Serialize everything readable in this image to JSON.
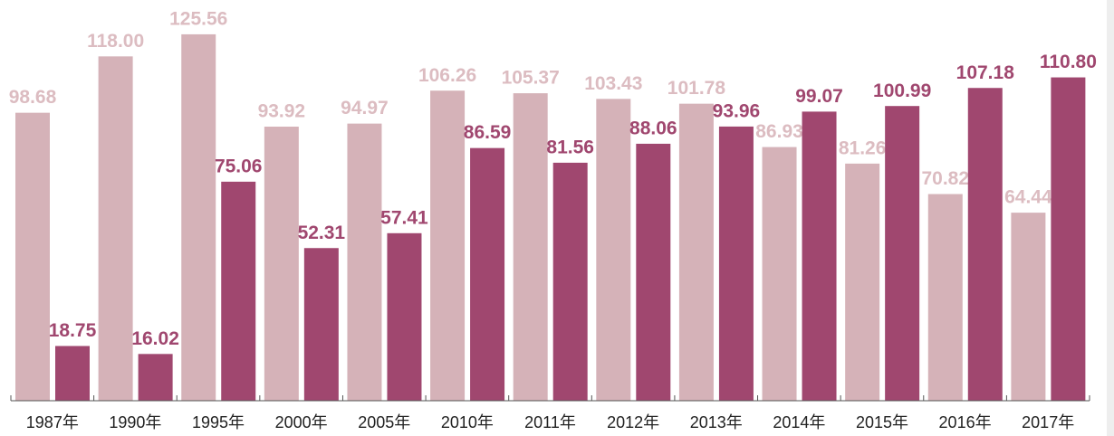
{
  "chart_data": {
    "type": "bar",
    "categories": [
      "1987年",
      "1990年",
      "1995年",
      "2000年",
      "2005年",
      "2010年",
      "2011年",
      "2012年",
      "2013年",
      "2014年",
      "2015年",
      "2016年",
      "2017年"
    ],
    "series": [
      {
        "color": "#d5b2b8",
        "values": [
          98.68,
          118.0,
          125.56,
          93.92,
          94.97,
          106.26,
          105.37,
          103.43,
          101.78,
          86.93,
          81.26,
          70.82,
          64.44
        ],
        "value_labels": [
          "98.68",
          "118.00",
          "125.56",
          "93.92",
          "94.97",
          "106.26",
          "105.37",
          "103.43",
          "101.78",
          "86.93",
          "81.26",
          "70.82",
          "64.44"
        ]
      },
      {
        "color": "#a0476f",
        "values": [
          18.75,
          16.02,
          75.06,
          52.31,
          57.41,
          86.59,
          81.56,
          88.06,
          93.96,
          99.07,
          100.99,
          107.18,
          110.8
        ],
        "value_labels": [
          "18.75",
          "16.02",
          "75.06",
          "52.31",
          "57.41",
          "86.59",
          "81.56",
          "88.06",
          "93.96",
          "99.07",
          "100.99",
          "107.18",
          "110.80"
        ]
      }
    ],
    "ylim": [
      0,
      130
    ]
  }
}
